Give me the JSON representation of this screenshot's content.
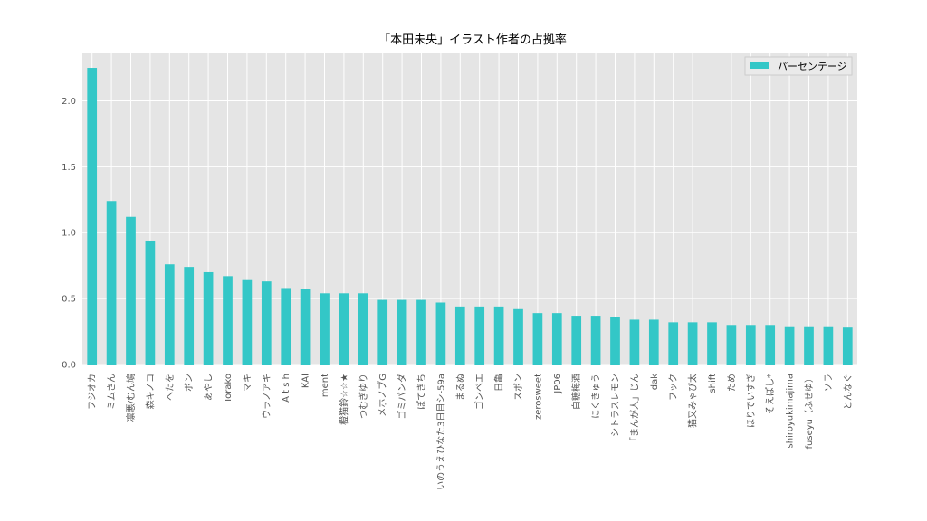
{
  "chart_data": {
    "type": "bar",
    "title": "「本田未央」イラスト作者の占拠率",
    "xlabel": "",
    "ylabel": "",
    "ylim": [
      0,
      2.36
    ],
    "yticks": [
      "0.0",
      "0.5",
      "1.0",
      "1.5",
      "2.0"
    ],
    "grid": true,
    "legend_position": "top-right",
    "color": "#33c7c7",
    "categories": [
      "フジオカ",
      "ミムさん",
      "凛悪/むん鳩",
      "森キノコ",
      "へたを",
      "ボン",
      "あやし",
      "Torako",
      "マキ",
      "ウラノアキ",
      "A t s h",
      "KAI",
      "ment",
      "橙猫鈴☆☆★",
      "つむぎゆり",
      "メホノブG",
      "ゴミパンダ",
      "ぽてきち",
      "いのうえひなた3日目シ-59a",
      "まるぬ",
      "ゴンベエ",
      "日亀",
      "スポン",
      "zerosweet",
      "JP06",
      "白糖梅酒",
      "にくきゅう",
      "シトラスレモン",
      "「まんが人」じん",
      "dak",
      "フック",
      "猫又みゃび太",
      "shift",
      "ため",
      "ほりでいすぎ",
      "そえぽし*",
      "shiroyukimajima",
      "fuseyu（ふせゆ）",
      "ソラ",
      "とんなぐ"
    ],
    "series": [
      {
        "name": "パーセンテージ",
        "values": [
          2.25,
          1.24,
          1.12,
          0.94,
          0.76,
          0.74,
          0.7,
          0.67,
          0.64,
          0.63,
          0.58,
          0.57,
          0.54,
          0.54,
          0.54,
          0.49,
          0.49,
          0.49,
          0.47,
          0.44,
          0.44,
          0.44,
          0.42,
          0.39,
          0.39,
          0.37,
          0.37,
          0.36,
          0.34,
          0.34,
          0.32,
          0.32,
          0.32,
          0.3,
          0.3,
          0.3,
          0.29,
          0.29,
          0.29,
          0.28
        ]
      }
    ]
  }
}
